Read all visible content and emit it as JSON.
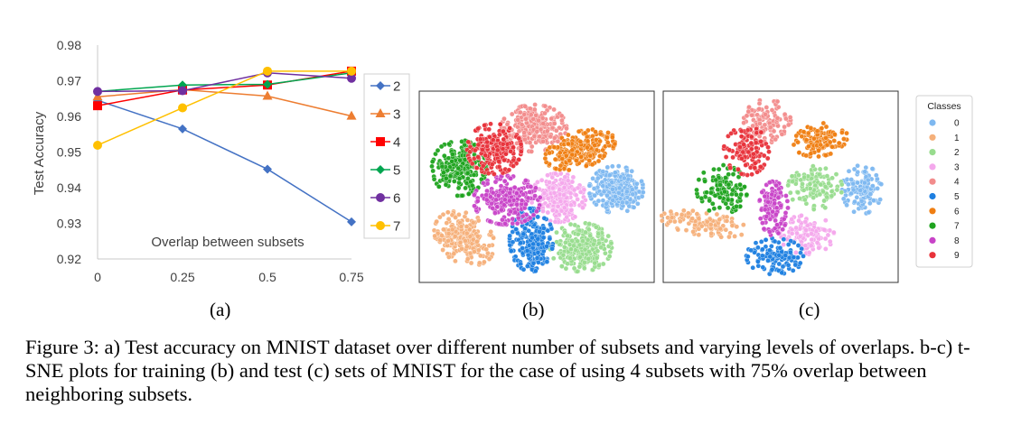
{
  "figure": {
    "panel_labels": [
      "(a)",
      "(b)",
      "(c)"
    ],
    "caption": "Figure 3: a) Test accuracy on MNIST dataset over different number of subsets and varying levels of overlaps. b-c) t-SNE plots for training (b) and test (c) sets of MNIST for the case of using 4 subsets with 75% overlap between neighboring subsets."
  },
  "chart_data": [
    {
      "type": "line",
      "ylabel": "Test Accuracy",
      "annotation": "Overlap between subsets",
      "x": [
        0,
        0.25,
        0.5,
        0.75
      ],
      "x_tick_labels": [
        "0",
        "0.25",
        "0.5",
        "0.75"
      ],
      "ylim": [
        0.92,
        0.98
      ],
      "y_ticks": [
        0.92,
        0.93,
        0.94,
        0.95,
        0.96,
        0.97,
        0.98
      ],
      "y_tick_labels": [
        "0.92",
        "0.93",
        "0.94",
        "0.95",
        "0.96",
        "0.97",
        "0.98"
      ],
      "legend_position": "right",
      "series": [
        {
          "name": "2",
          "color": "#4472C4",
          "marker": "diamond",
          "values": [
            0.9645,
            0.9565,
            0.9452,
            0.9304
          ]
        },
        {
          "name": "3",
          "color": "#ED7D31",
          "marker": "triangle",
          "values": [
            0.9655,
            0.9675,
            0.9657,
            0.9601
          ]
        },
        {
          "name": "4",
          "color": "#FF0000",
          "marker": "square",
          "values": [
            0.963,
            0.9674,
            0.9688,
            0.9727
          ]
        },
        {
          "name": "5",
          "color": "#00A550",
          "marker": "diamond",
          "values": [
            0.967,
            0.9688,
            0.969,
            0.9722
          ]
        },
        {
          "name": "6",
          "color": "#7030A0",
          "marker": "circle",
          "values": [
            0.967,
            0.9672,
            0.9722,
            0.9707
          ]
        },
        {
          "name": "7",
          "color": "#FFC000",
          "marker": "circle",
          "values": [
            0.9519,
            0.9624,
            0.9727,
            0.9727
          ]
        }
      ]
    },
    {
      "type": "scatter",
      "legend_title": "Classes",
      "legend_position": "right",
      "classes": [
        {
          "name": "0",
          "color": "#7EB8F0"
        },
        {
          "name": "1",
          "color": "#F5B07A"
        },
        {
          "name": "2",
          "color": "#98DC8E"
        },
        {
          "name": "3",
          "color": "#F4A8EC"
        },
        {
          "name": "4",
          "color": "#F28C8C"
        },
        {
          "name": "5",
          "color": "#1E7FE0"
        },
        {
          "name": "6",
          "color": "#EF7E12"
        },
        {
          "name": "7",
          "color": "#1FA31F"
        },
        {
          "name": "8",
          "color": "#C844C8"
        },
        {
          "name": "9",
          "color": "#E8323A"
        }
      ]
    }
  ]
}
